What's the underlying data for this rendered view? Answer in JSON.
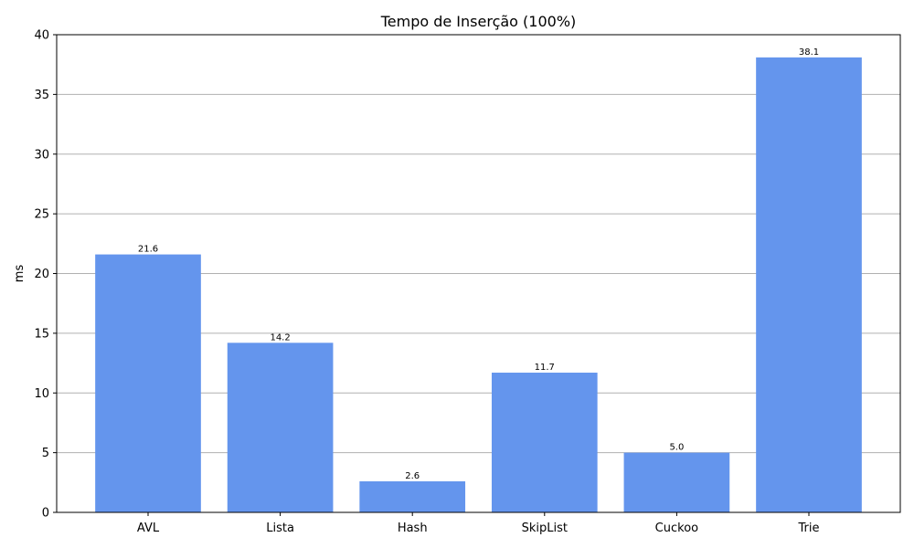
{
  "chart_data": {
    "type": "bar",
    "title": "Tempo de Inserção (100%)",
    "xlabel": "",
    "ylabel": "ms",
    "categories": [
      "AVL",
      "Lista",
      "Hash",
      "SkipList",
      "Cuckoo",
      "Trie"
    ],
    "values": [
      21.6,
      14.2,
      2.6,
      11.7,
      5.0,
      38.1
    ],
    "value_labels": [
      "21.6",
      "14.2",
      "2.6",
      "11.7",
      "5.0",
      "38.1"
    ],
    "ylim": [
      0,
      40
    ],
    "yticks": [
      0,
      5,
      10,
      15,
      20,
      25,
      30,
      35,
      40
    ],
    "grid": "y",
    "bar_color": "#6495ED"
  }
}
